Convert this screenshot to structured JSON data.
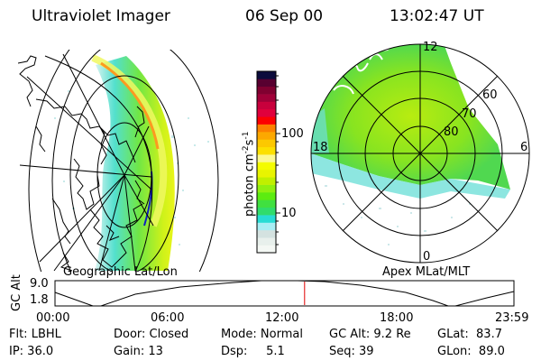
{
  "header": {
    "instrument": "Ultraviolet Imager",
    "date": "06 Sep 00",
    "time": "13:02:47 UT"
  },
  "left_panel": {
    "caption": "Geographic Lat/Lon"
  },
  "right_panel": {
    "caption": "Apex MLat/MLT",
    "mlt_labels": [
      "12",
      "6",
      "0",
      "18"
    ],
    "mlat_labels": [
      "80",
      "70",
      "60"
    ]
  },
  "colorbar": {
    "unit_main": "photon cm",
    "unit_exp1": "-2",
    "unit_s": "s",
    "unit_exp2": "-1",
    "tick_labels": [
      "100",
      "10"
    ],
    "colors": [
      "#f4f8f4",
      "#e8f0ec",
      "#d4e2e0",
      "#a8eef4",
      "#28dcd4",
      "#30dc6c",
      "#40e040",
      "#5cec10",
      "#90f010",
      "#c0f000",
      "#e8f400",
      "#f4fc00",
      "#fcf890",
      "#fce000",
      "#fcc800",
      "#fca800",
      "#fc8000",
      "#fc0000",
      "#e0003c",
      "#c8003c",
      "#a00038",
      "#800030",
      "#580030",
      "#0c0c3c"
    ]
  },
  "timeline": {
    "ylabel": "GC Alt",
    "yticks": [
      "9.0",
      "1.8"
    ],
    "xticks": [
      "00:00",
      "06:00",
      "12:00",
      "18:00",
      "23:59"
    ],
    "current_hours": 13.05,
    "marker_color": "#e00000"
  },
  "info": {
    "row1": [
      "Flt: LBHL",
      "Door: Closed",
      "Mode: Normal",
      "GC Alt: 9.2 Re",
      "GLat:  83.7"
    ],
    "row2": [
      "IP: 36.0",
      "Gain: 13",
      "Dsp:     5.1",
      "Seq: 39",
      "GLon:  89.0"
    ]
  }
}
